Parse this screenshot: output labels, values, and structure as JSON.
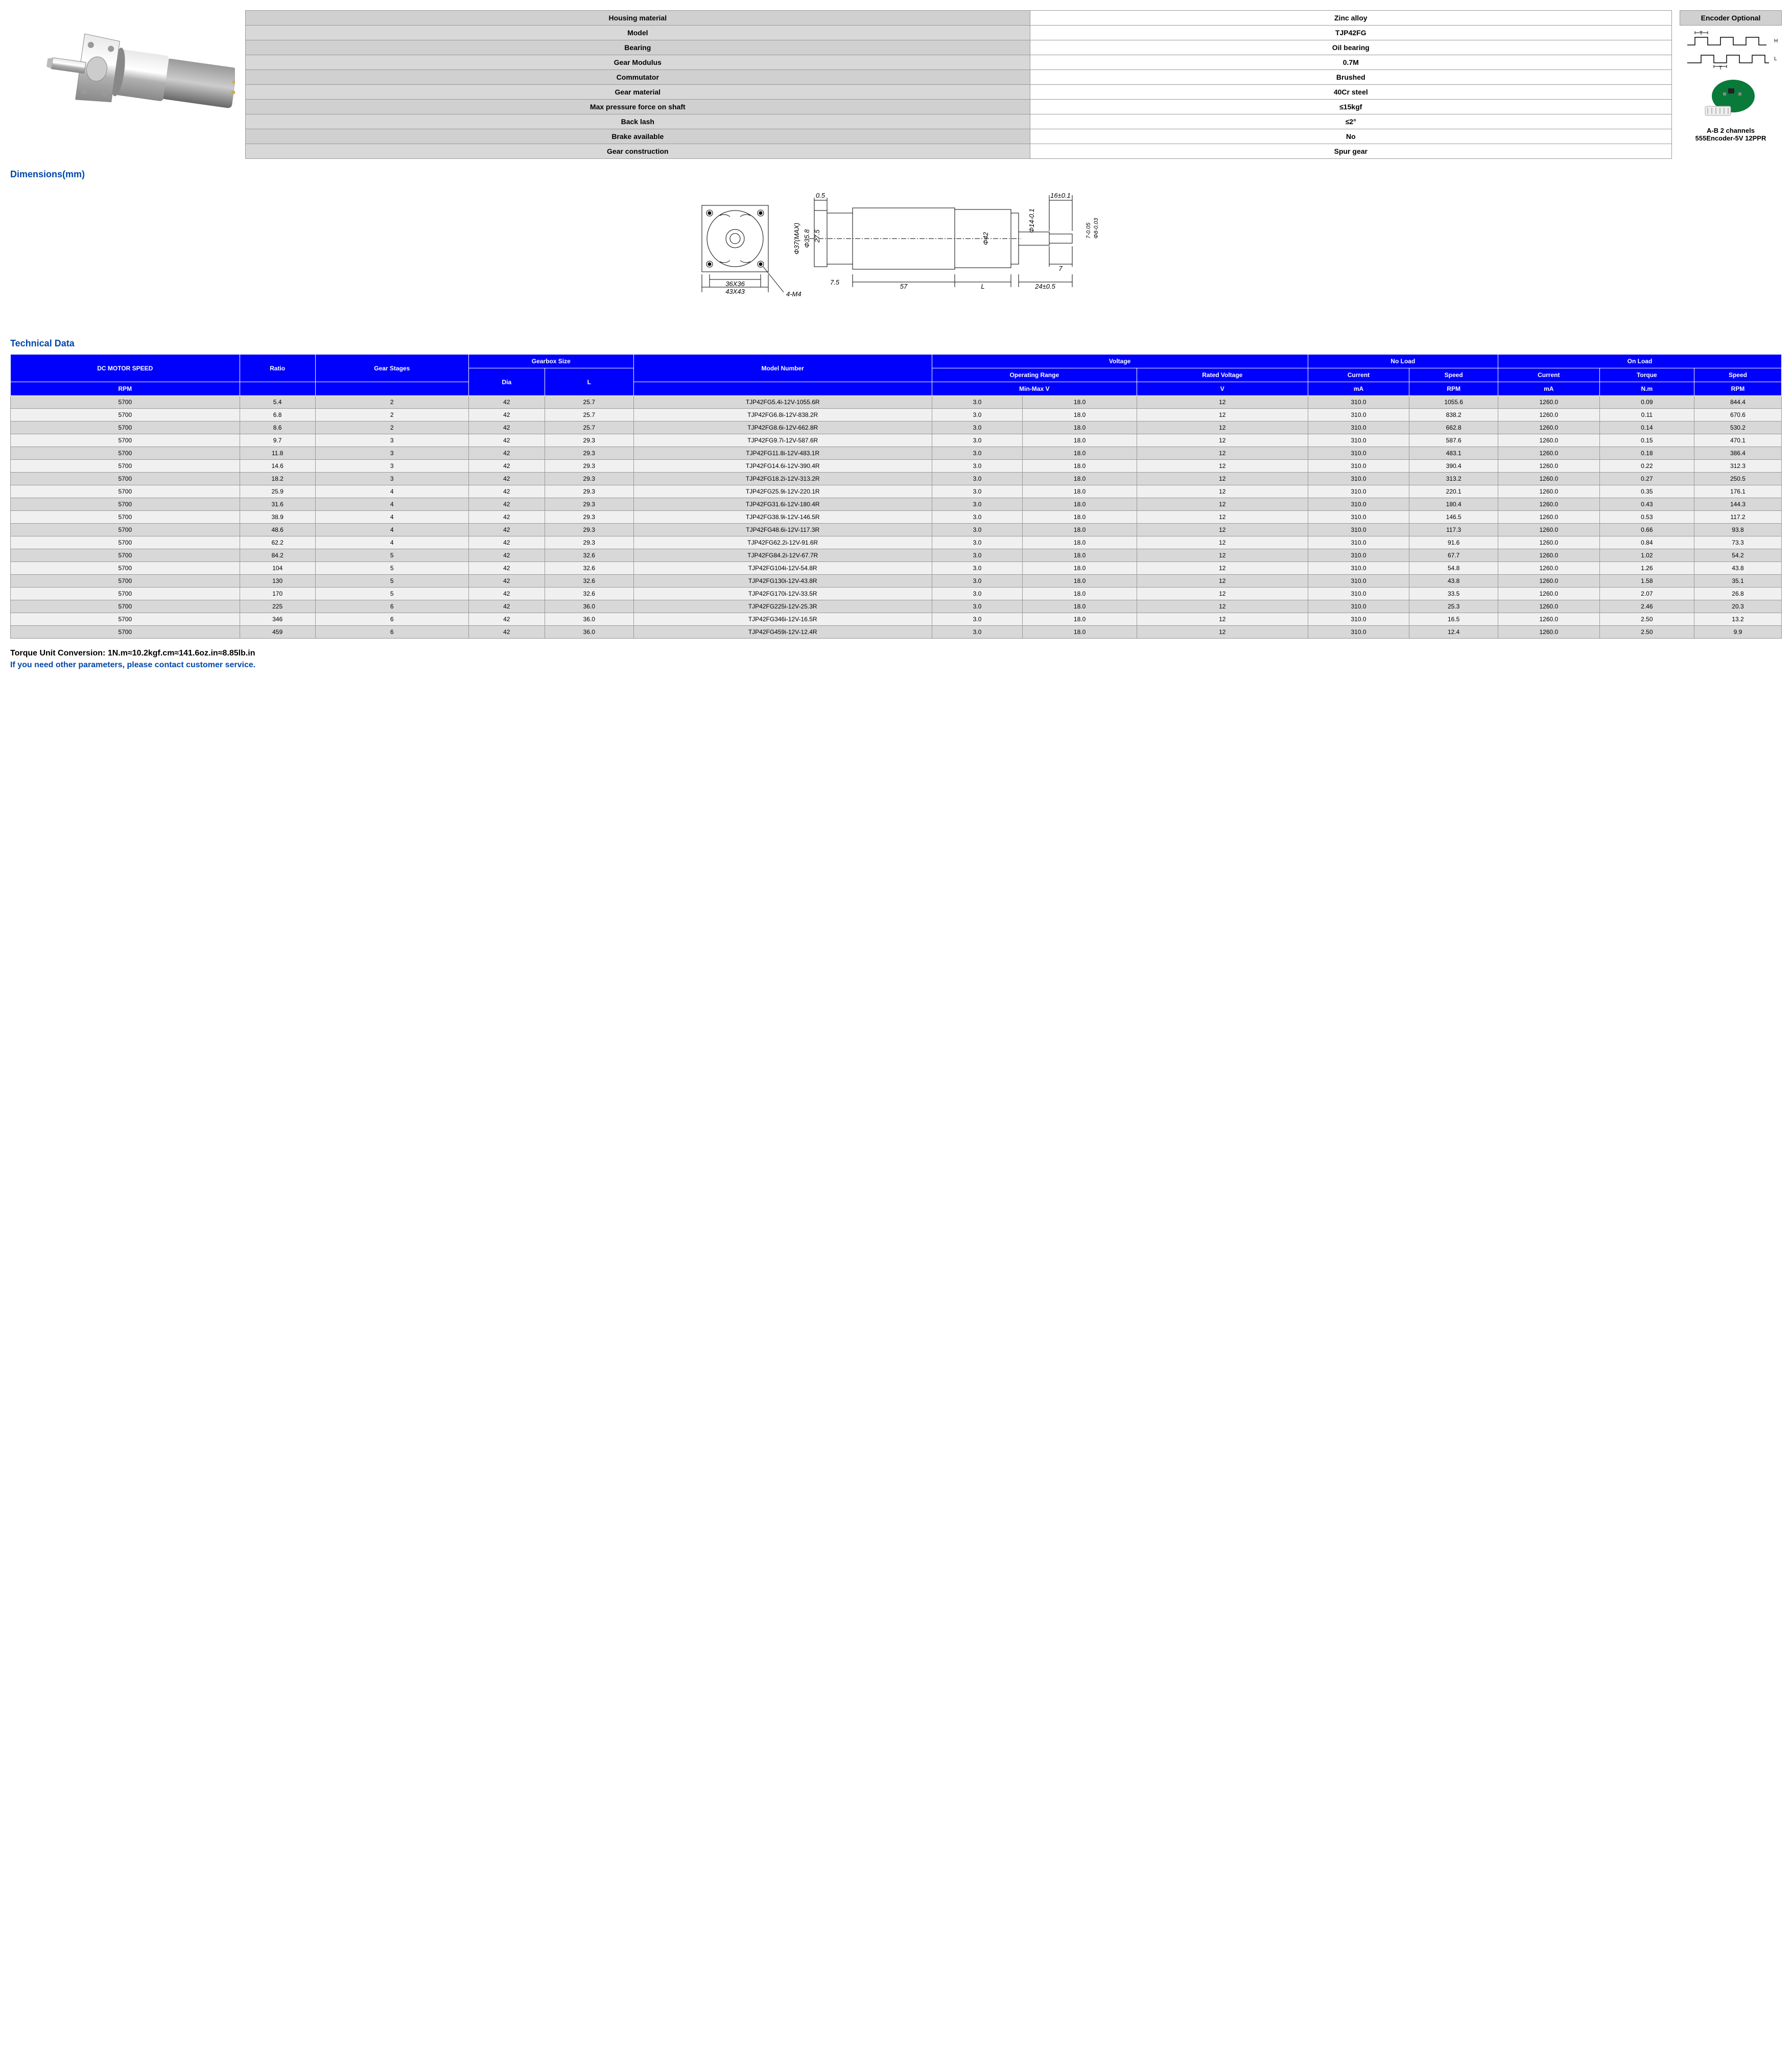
{
  "specs": {
    "rows": [
      {
        "label": "Housing material",
        "value": "Zinc alloy"
      },
      {
        "label": "Model",
        "value": "TJP42FG"
      },
      {
        "label": "Bearing",
        "value": "Oil bearing"
      },
      {
        "label": "Gear Modulus",
        "value": "0.7M"
      },
      {
        "label": "Commutator",
        "value": "Brushed"
      },
      {
        "label": "Gear material",
        "value": "40Cr steel"
      },
      {
        "label": "Max pressure force on shaft",
        "value": "≤15kgf"
      },
      {
        "label": "Back lash",
        "value": "≤2°"
      },
      {
        "label": "Brake available",
        "value": "No"
      },
      {
        "label": "Gear construction",
        "value": "Spur gear"
      }
    ]
  },
  "encoder": {
    "header": "Encoder Optional",
    "line1": "A-B 2 channels",
    "line2": "555Encoder-5V 12PPR",
    "signal_h": "H",
    "signal_l": "L",
    "signal_t1": "T",
    "signal_t2": "T"
  },
  "sections": {
    "dimensions": "Dimensions(mm)",
    "technical": "Technical Data"
  },
  "dimensions": {
    "flange_hole": "36X36",
    "flange_outer": "43X43",
    "mount_holes": "4-M4",
    "gearbox_dia_max": "Φ37(MAX)",
    "dim_05": "0.5",
    "dim_358": "Φ35.8",
    "dim_275": "27.5",
    "dim_75": "7.5",
    "dim_57": "57",
    "dim_L": "L",
    "motor_dia": "Φ42",
    "dim_16": "16±0.1",
    "shaft_dia": "Φ14-0.1",
    "shaft_tol_7": "7-0.05",
    "shaft_tol_8": "Φ8-0.03",
    "dim_7": "7",
    "dim_24": "24±0.5",
    "superscript_zero": "0"
  },
  "tech_headers": {
    "dc_speed": "DC MOTOR SPEED",
    "ratio": "Ratio",
    "stages": "Gear Stages",
    "gearbox": "Gearbox Size",
    "model": "Model Number",
    "voltage": "Voltage",
    "noload": "No Load",
    "onload": "On Load",
    "rpm": "RPM",
    "dia": "Dia",
    "l": "L",
    "op_range": "Operating Range",
    "rated_v": "Rated Voltage",
    "current": "Current",
    "speed": "Speed",
    "torque": "Torque",
    "minmax": "Min-Max V",
    "v": "V",
    "ma": "mA",
    "nm": "N.m"
  },
  "tech_rows": [
    {
      "speed": "5700",
      "ratio": "5.4",
      "stages": "2",
      "dia": "42",
      "l": "25.7",
      "model": "TJP42FG5.4i-12V-1055.6R",
      "vmin": "3.0",
      "vmax": "18.0",
      "rv": "12",
      "nlc": "310.0",
      "nls": "1055.6",
      "olc": "1260.0",
      "olt": "0.09",
      "ols": "844.4"
    },
    {
      "speed": "5700",
      "ratio": "6.8",
      "stages": "2",
      "dia": "42",
      "l": "25.7",
      "model": "TJP42FG6.8i-12V-838.2R",
      "vmin": "3.0",
      "vmax": "18.0",
      "rv": "12",
      "nlc": "310.0",
      "nls": "838.2",
      "olc": "1260.0",
      "olt": "0.11",
      "ols": "670.6"
    },
    {
      "speed": "5700",
      "ratio": "8.6",
      "stages": "2",
      "dia": "42",
      "l": "25.7",
      "model": "TJP42FG8.6i-12V-662.8R",
      "vmin": "3.0",
      "vmax": "18.0",
      "rv": "12",
      "nlc": "310.0",
      "nls": "662.8",
      "olc": "1260.0",
      "olt": "0.14",
      "ols": "530.2"
    },
    {
      "speed": "5700",
      "ratio": "9.7",
      "stages": "3",
      "dia": "42",
      "l": "29.3",
      "model": "TJP42FG9.7i-12V-587.6R",
      "vmin": "3.0",
      "vmax": "18.0",
      "rv": "12",
      "nlc": "310.0",
      "nls": "587.6",
      "olc": "1260.0",
      "olt": "0.15",
      "ols": "470.1"
    },
    {
      "speed": "5700",
      "ratio": "11.8",
      "stages": "3",
      "dia": "42",
      "l": "29.3",
      "model": "TJP42FG11.8i-12V-483.1R",
      "vmin": "3.0",
      "vmax": "18.0",
      "rv": "12",
      "nlc": "310.0",
      "nls": "483.1",
      "olc": "1260.0",
      "olt": "0.18",
      "ols": "386.4"
    },
    {
      "speed": "5700",
      "ratio": "14.6",
      "stages": "3",
      "dia": "42",
      "l": "29.3",
      "model": "TJP42FG14.6i-12V-390.4R",
      "vmin": "3.0",
      "vmax": "18.0",
      "rv": "12",
      "nlc": "310.0",
      "nls": "390.4",
      "olc": "1260.0",
      "olt": "0.22",
      "ols": "312.3"
    },
    {
      "speed": "5700",
      "ratio": "18.2",
      "stages": "3",
      "dia": "42",
      "l": "29.3",
      "model": "TJP42FG18.2i-12V-313.2R",
      "vmin": "3.0",
      "vmax": "18.0",
      "rv": "12",
      "nlc": "310.0",
      "nls": "313.2",
      "olc": "1260.0",
      "olt": "0.27",
      "ols": "250.5"
    },
    {
      "speed": "5700",
      "ratio": "25.9",
      "stages": "4",
      "dia": "42",
      "l": "29.3",
      "model": "TJP42FG25.9i-12V-220.1R",
      "vmin": "3.0",
      "vmax": "18.0",
      "rv": "12",
      "nlc": "310.0",
      "nls": "220.1",
      "olc": "1260.0",
      "olt": "0.35",
      "ols": "176.1"
    },
    {
      "speed": "5700",
      "ratio": "31.6",
      "stages": "4",
      "dia": "42",
      "l": "29.3",
      "model": "TJP42FG31.6i-12V-180.4R",
      "vmin": "3.0",
      "vmax": "18.0",
      "rv": "12",
      "nlc": "310.0",
      "nls": "180.4",
      "olc": "1260.0",
      "olt": "0.43",
      "ols": "144.3"
    },
    {
      "speed": "5700",
      "ratio": "38.9",
      "stages": "4",
      "dia": "42",
      "l": "29.3",
      "model": "TJP42FG38.9i-12V-146.5R",
      "vmin": "3.0",
      "vmax": "18.0",
      "rv": "12",
      "nlc": "310.0",
      "nls": "146.5",
      "olc": "1260.0",
      "olt": "0.53",
      "ols": "117.2"
    },
    {
      "speed": "5700",
      "ratio": "48.6",
      "stages": "4",
      "dia": "42",
      "l": "29.3",
      "model": "TJP42FG48.6i-12V-117.3R",
      "vmin": "3.0",
      "vmax": "18.0",
      "rv": "12",
      "nlc": "310.0",
      "nls": "117.3",
      "olc": "1260.0",
      "olt": "0.66",
      "ols": "93.8"
    },
    {
      "speed": "5700",
      "ratio": "62.2",
      "stages": "4",
      "dia": "42",
      "l": "29.3",
      "model": "TJP42FG62.2i-12V-91.6R",
      "vmin": "3.0",
      "vmax": "18.0",
      "rv": "12",
      "nlc": "310.0",
      "nls": "91.6",
      "olc": "1260.0",
      "olt": "0.84",
      "ols": "73.3"
    },
    {
      "speed": "5700",
      "ratio": "84.2",
      "stages": "5",
      "dia": "42",
      "l": "32.6",
      "model": "TJP42FG84.2i-12V-67.7R",
      "vmin": "3.0",
      "vmax": "18.0",
      "rv": "12",
      "nlc": "310.0",
      "nls": "67.7",
      "olc": "1260.0",
      "olt": "1.02",
      "ols": "54.2"
    },
    {
      "speed": "5700",
      "ratio": "104",
      "stages": "5",
      "dia": "42",
      "l": "32.6",
      "model": "TJP42FG104i-12V-54.8R",
      "vmin": "3.0",
      "vmax": "18.0",
      "rv": "12",
      "nlc": "310.0",
      "nls": "54.8",
      "olc": "1260.0",
      "olt": "1.26",
      "ols": "43.8"
    },
    {
      "speed": "5700",
      "ratio": "130",
      "stages": "5",
      "dia": "42",
      "l": "32.6",
      "model": "TJP42FG130i-12V-43.8R",
      "vmin": "3.0",
      "vmax": "18.0",
      "rv": "12",
      "nlc": "310.0",
      "nls": "43.8",
      "olc": "1260.0",
      "olt": "1.58",
      "ols": "35.1"
    },
    {
      "speed": "5700",
      "ratio": "170",
      "stages": "5",
      "dia": "42",
      "l": "32.6",
      "model": "TJP42FG170i-12V-33.5R",
      "vmin": "3.0",
      "vmax": "18.0",
      "rv": "12",
      "nlc": "310.0",
      "nls": "33.5",
      "olc": "1260.0",
      "olt": "2.07",
      "ols": "26.8"
    },
    {
      "speed": "5700",
      "ratio": "225",
      "stages": "6",
      "dia": "42",
      "l": "36.0",
      "model": "TJP42FG225i-12V-25.3R",
      "vmin": "3.0",
      "vmax": "18.0",
      "rv": "12",
      "nlc": "310.0",
      "nls": "25.3",
      "olc": "1260.0",
      "olt": "2.46",
      "ols": "20.3"
    },
    {
      "speed": "5700",
      "ratio": "346",
      "stages": "6",
      "dia": "42",
      "l": "36.0",
      "model": "TJP42FG346i-12V-16.5R",
      "vmin": "3.0",
      "vmax": "18.0",
      "rv": "12",
      "nlc": "310.0",
      "nls": "16.5",
      "olc": "1260.0",
      "olt": "2.50",
      "ols": "13.2"
    },
    {
      "speed": "5700",
      "ratio": "459",
      "stages": "6",
      "dia": "42",
      "l": "36.0",
      "model": "TJP42FG459i-12V-12.4R",
      "vmin": "3.0",
      "vmax": "18.0",
      "rv": "12",
      "nlc": "310.0",
      "nls": "12.4",
      "olc": "1260.0",
      "olt": "2.50",
      "ols": "9.9"
    }
  ],
  "footer": {
    "conversion": "Torque Unit Conversion: 1N.m≈10.2kgf.cm≈141.6oz.in≈8.85lb.in",
    "contact": "If you need other parameters, please contact customer service."
  }
}
